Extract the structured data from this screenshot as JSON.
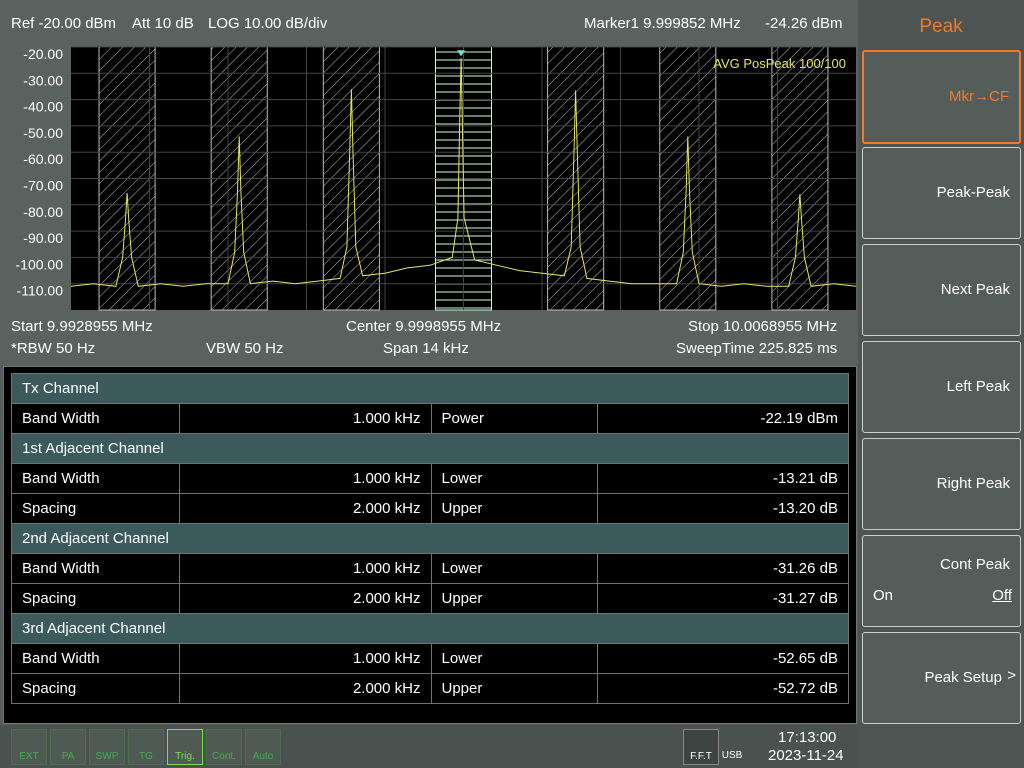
{
  "header": {
    "ref": "Ref -20.00 dBm",
    "att": "Att 10 dB",
    "scale": "LOG 10.00 dB/div",
    "marker": "Marker1 9.999852 MHz",
    "marker_level": "-24.26 dBm"
  },
  "chart_data": {
    "type": "line",
    "annotation": "AVG PosPeak 100/100",
    "color": "#e6e65c",
    "grid": true,
    "xlim": [
      9.9928955,
      10.0068955
    ],
    "ylim": [
      -120,
      -20
    ],
    "yticks": [
      {
        "value": -20,
        "label": "-20.00"
      },
      {
        "value": -30,
        "label": "-30.00"
      },
      {
        "value": -40,
        "label": "-40.00"
      },
      {
        "value": -50,
        "label": "-50.00"
      },
      {
        "value": -60,
        "label": "-60.00"
      },
      {
        "value": -70,
        "label": "-70.00"
      },
      {
        "value": -80,
        "label": "-80.00"
      },
      {
        "value": -90,
        "label": "-90.00"
      },
      {
        "value": -100,
        "label": "-100.00"
      },
      {
        "value": -110,
        "label": "-110.00"
      }
    ],
    "x": [
      9.9928955,
      9.9932955,
      9.9936955,
      9.9938155,
      9.9938655,
      9.9938955,
      9.9939255,
      9.9939755,
      9.9940955,
      9.9944955,
      9.9948955,
      9.9952955,
      9.9956955,
      9.9958155,
      9.9958655,
      9.9958955,
      9.9959255,
      9.9959755,
      9.9960955,
      9.9964955,
      9.9968955,
      9.9972955,
      9.9976955,
      9.9978155,
      9.9978655,
      9.9978955,
      9.9979255,
      9.9979755,
      9.9980955,
      9.9984955,
      9.9988955,
      9.9992955,
      9.9996955,
      9.9997955,
      9.9998255,
      9.999852,
      9.9998755,
      9.9999055,
      10.0000955,
      10.0004955,
      10.0008955,
      10.0012955,
      10.0016955,
      10.0018155,
      10.0018655,
      10.0018955,
      10.0019255,
      10.0019755,
      10.0020955,
      10.0024955,
      10.0028955,
      10.0032955,
      10.0036955,
      10.0038155,
      10.0038655,
      10.0038955,
      10.0039255,
      10.0039755,
      10.0040955,
      10.0044955,
      10.0048955,
      10.0052955,
      10.0056955,
      10.0058155,
      10.0058655,
      10.0058955,
      10.0059255,
      10.0059755,
      10.0060955,
      10.0064955,
      10.0068955
    ],
    "values": [
      -111,
      -110,
      -111,
      -100,
      -86,
      -75.5,
      -86,
      -100,
      -111,
      -110,
      -111,
      -110,
      -110,
      -98,
      -75,
      -54,
      -75,
      -98,
      -110,
      -109,
      -110,
      -109,
      -108,
      -96,
      -60,
      -36,
      -60,
      -96,
      -107,
      -106,
      -104,
      -103,
      -100,
      -85,
      -50,
      -24.26,
      -50,
      -85,
      -101,
      -103,
      -105,
      -106,
      -107,
      -96,
      -60,
      -36.5,
      -60,
      -96,
      -108,
      -109,
      -110,
      -110,
      -110,
      -98,
      -75,
      -54,
      -75,
      -98,
      -110,
      -111,
      -110,
      -111,
      -111,
      -100,
      -86,
      -76,
      -86,
      -100,
      -111,
      -110,
      -111
    ]
  },
  "footer": {
    "start": "Start 9.9928955 MHz",
    "center": "Center 9.9998955 MHz",
    "stop": "Stop 10.0068955 MHz",
    "rbw": "*RBW 50 Hz",
    "vbw": "VBW 50 Hz",
    "span": "Span 14 kHz",
    "sweep": "SweepTime 225.825 ms"
  },
  "table": {
    "sections": [
      {
        "title": "Tx Channel",
        "rows": [
          [
            "Band Width",
            "1.000 kHz",
            "Power",
            "-22.19 dBm"
          ]
        ]
      },
      {
        "title": "1st Adjacent Channel",
        "rows": [
          [
            "Band Width",
            "1.000 kHz",
            "Lower",
            "-13.21 dB"
          ],
          [
            "Spacing",
            "2.000 kHz",
            "Upper",
            "-13.20 dB"
          ]
        ]
      },
      {
        "title": "2nd Adjacent Channel",
        "rows": [
          [
            "Band Width",
            "1.000 kHz",
            "Lower",
            "-31.26 dB"
          ],
          [
            "Spacing",
            "2.000 kHz",
            "Upper",
            "-31.27 dB"
          ]
        ]
      },
      {
        "title": "3rd Adjacent Channel",
        "rows": [
          [
            "Band Width",
            "1.000 kHz",
            "Lower",
            "-52.65 dB"
          ],
          [
            "Spacing",
            "2.000 kHz",
            "Upper",
            "-52.72 dB"
          ]
        ]
      }
    ]
  },
  "menu": {
    "title": "Peak",
    "keys": [
      {
        "label": "Mkr→CF"
      },
      {
        "label": "Peak-Peak"
      },
      {
        "label": "Next Peak"
      },
      {
        "label": "Left Peak"
      },
      {
        "label": "Right Peak"
      },
      {
        "label": "Cont Peak",
        "on": "On",
        "off": "Off"
      },
      {
        "label": "Peak Setup",
        "arrow": ">"
      }
    ]
  },
  "status": {
    "icons": [
      "EXT",
      "PA",
      "SWP",
      "TG",
      "Trig.",
      "Cont.",
      "Auto"
    ],
    "fft": "F.F.T",
    "usb": "USB",
    "time": "17:13:00",
    "date": "2023-11-24"
  }
}
